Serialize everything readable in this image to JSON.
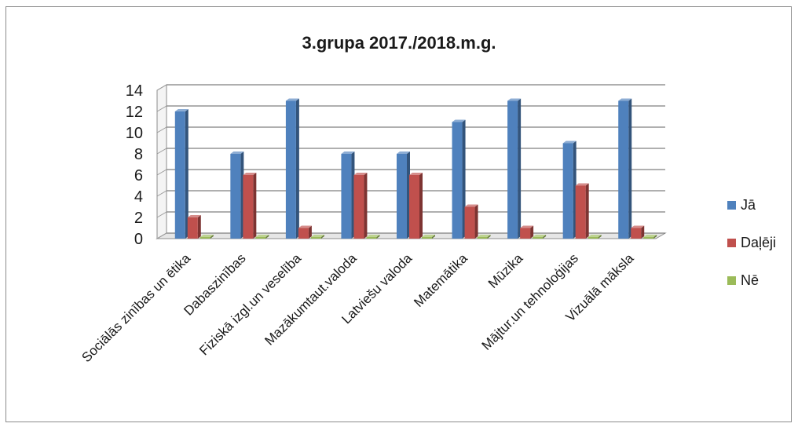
{
  "chart_data": {
    "type": "bar",
    "title": "3.grupa  2017./2018.m.g.",
    "categories": [
      "Sociālās zinības un ētika",
      "Dabaszinības",
      "Fiziskā izgl.un veselība",
      "Mazākumtaut.valoda",
      "Latviešu valoda",
      "Matemātika",
      "Mūzika",
      "Mājtur.un tehnoloģijas",
      "Vizuālā māksla"
    ],
    "series": [
      {
        "name": "Jā",
        "color": "#4f81bd",
        "values": [
          12,
          8,
          13,
          8,
          8,
          11,
          13,
          9,
          13
        ]
      },
      {
        "name": "Daļēji",
        "color": "#c0504d",
        "values": [
          2,
          6,
          1,
          6,
          6,
          3,
          1,
          5,
          1
        ]
      },
      {
        "name": "Nē",
        "color": "#9bbb59",
        "values": [
          0,
          0,
          0,
          0,
          0,
          0,
          0,
          0,
          0
        ]
      }
    ],
    "ylim": [
      0,
      14
    ],
    "yticks": [
      0,
      2,
      4,
      6,
      8,
      10,
      12,
      14
    ],
    "grid": true,
    "legend": "right"
  }
}
